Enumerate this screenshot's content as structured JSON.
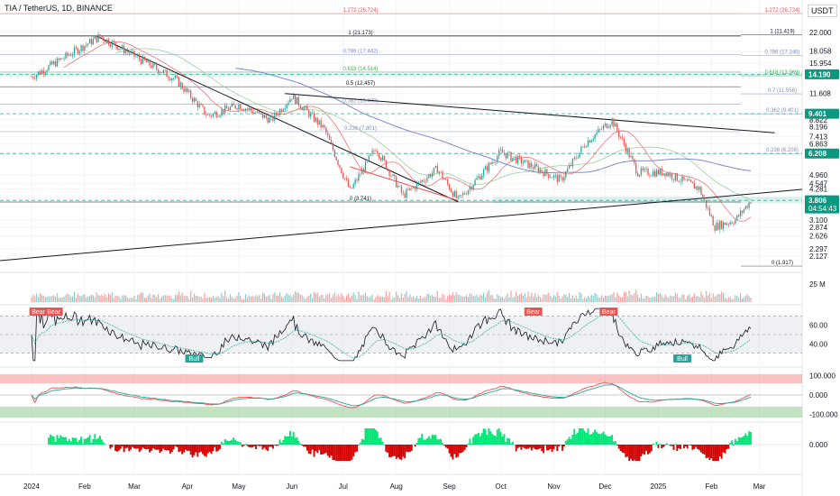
{
  "header": {
    "title": "TIA / TetherUS, 1D, BINANCE",
    "currency": "USDT"
  },
  "colors": {
    "bull": "#26a69a",
    "bear": "#ef5350",
    "grid": "#f0f3fa",
    "axis_text": "#131722",
    "label_green": "#089981",
    "label_dark": "#131722"
  },
  "chart_data": [
    {
      "type": "candlestick",
      "title": "TIA / TetherUS, 1D, BINANCE",
      "y_scale": "log",
      "ylim": [
        1.9,
        27
      ],
      "y_ticks": [
        "22.000",
        "18.058",
        "15.954",
        "11.608",
        "8.822",
        "8.196",
        "7.413",
        "6.863",
        "4.960",
        "4.547",
        "4.281",
        "3.898",
        "3.100",
        "2.874",
        "2.626",
        "2.297",
        "2.127"
      ],
      "x_ticks": [
        "2024",
        "Feb",
        "Mar",
        "Apr",
        "May",
        "Jun",
        "Jul",
        "Aug",
        "Sep",
        "Oct",
        "Nov",
        "Dec",
        "2025",
        "Feb",
        "Mar"
      ],
      "price_labels": [
        {
          "value": 14.19,
          "text": "14.190",
          "color": "#089981"
        },
        {
          "value": 9.401,
          "text": "9.401",
          "color": "#089981"
        },
        {
          "value": 6.208,
          "text": "6.208",
          "color": "#089981"
        },
        {
          "value": 3.806,
          "text": "3.806",
          "color": "#089981",
          "countdown": "04:54:43"
        }
      ],
      "fib_levels": [
        {
          "label": "1.272 (26.724)",
          "value": 26.724,
          "color": "#ef5350"
        },
        {
          "label": "1 (21.173)",
          "value": 21.173,
          "color": "#131722"
        },
        {
          "label": "0.786 (17.442)",
          "value": 17.442,
          "color": "#7e8cc8"
        },
        {
          "label": "0.618 (14.514)",
          "value": 14.514,
          "color": "#4caf50"
        },
        {
          "label": "0.5 (12.457)",
          "value": 12.457,
          "color": "#131722"
        },
        {
          "label": "0.382 (10.400)",
          "value": 10.4,
          "color": "#7e8cc8"
        },
        {
          "label": "0.236 (7.801)",
          "value": 7.801,
          "color": "#7e8cc8"
        },
        {
          "label": "0 (3.741)",
          "value": 3.741,
          "color": "#131722"
        }
      ],
      "fib_levels_right": [
        {
          "label": "1.272 (26.724)",
          "value": 26.724,
          "color": "#ef5350"
        },
        {
          "label": "1 (21.419)",
          "value": 21.419,
          "color": "#131722"
        },
        {
          "label": "0.786 (17.246)",
          "value": 17.246,
          "color": "#7e8cc8"
        },
        {
          "label": "0.618 (13.969)",
          "value": 13.969,
          "color": "#4caf50"
        },
        {
          "label": "0.7 (11.558)",
          "value": 11.558,
          "color": "#7e8cc8"
        },
        {
          "label": "0.382 (9.401)",
          "value": 9.401,
          "color": "#7e8cc8"
        },
        {
          "label": "0.236 (6.208)",
          "value": 6.208,
          "color": "#7e8cc8"
        },
        {
          "label": "0 (1.917)",
          "value": 1.917,
          "color": "#131722"
        }
      ],
      "key_points": [
        {
          "date": "2024-01-01",
          "price": 13.8
        },
        {
          "date": "2024-02-10",
          "price": 21.1
        },
        {
          "date": "2024-03-05",
          "price": 16.5
        },
        {
          "date": "2024-03-25",
          "price": 13.5
        },
        {
          "date": "2024-04-13",
          "price": 9.2
        },
        {
          "date": "2024-05-01",
          "price": 10.3
        },
        {
          "date": "2024-05-20",
          "price": 8.8
        },
        {
          "date": "2024-06-01",
          "price": 11.3
        },
        {
          "date": "2024-06-20",
          "price": 8.0
        },
        {
          "date": "2024-07-05",
          "price": 4.2
        },
        {
          "date": "2024-07-20",
          "price": 6.6
        },
        {
          "date": "2024-08-05",
          "price": 4.0
        },
        {
          "date": "2024-08-25",
          "price": 5.3
        },
        {
          "date": "2024-09-06",
          "price": 3.8
        },
        {
          "date": "2024-10-01",
          "price": 6.3
        },
        {
          "date": "2024-10-20",
          "price": 5.4
        },
        {
          "date": "2024-11-05",
          "price": 4.7
        },
        {
          "date": "2024-11-20",
          "price": 7.0
        },
        {
          "date": "2024-12-05",
          "price": 8.8
        },
        {
          "date": "2024-12-20",
          "price": 5.1
        },
        {
          "date": "2025-01-05",
          "price": 5.1
        },
        {
          "date": "2025-01-25",
          "price": 4.3
        },
        {
          "date": "2025-02-03",
          "price": 2.9
        },
        {
          "date": "2025-02-15",
          "price": 3.1
        },
        {
          "date": "2025-02-24",
          "price": 3.8
        }
      ]
    },
    {
      "type": "bar",
      "title": "",
      "axis_label": "25 M"
    },
    {
      "type": "line",
      "title": "",
      "y_ticks": [
        "60.00",
        "40.00"
      ],
      "ylim": [
        20,
        80
      ],
      "signals": [
        {
          "text": "Bear",
          "date": "2024-01-05"
        },
        {
          "text": "Bear",
          "date": "2024-01-14"
        },
        {
          "text": "Bull",
          "date": "2024-04-05"
        },
        {
          "text": "Bear",
          "date": "2024-10-20"
        },
        {
          "text": "Bear",
          "date": "2024-12-03"
        },
        {
          "text": "Bull",
          "date": "2025-01-15"
        }
      ]
    },
    {
      "type": "line",
      "title": "",
      "y_ticks": [
        "100.000",
        "0.000",
        "-100.000"
      ],
      "ylim": [
        -130,
        130
      ]
    },
    {
      "type": "area",
      "title": "",
      "y_ticks": [
        "0.000"
      ]
    }
  ]
}
